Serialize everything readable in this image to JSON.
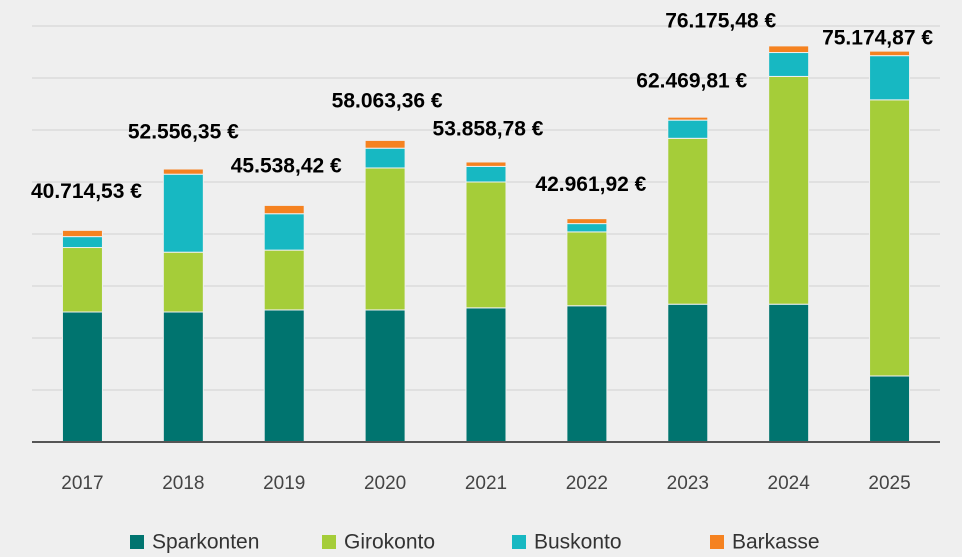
{
  "chart_data": {
    "type": "stacked_bar",
    "categories": [
      "2017",
      "2018",
      "2019",
      "2020",
      "2021",
      "2022",
      "2023",
      "2024",
      "2025"
    ],
    "series": [
      {
        "name": "Sparkonten",
        "color": "#00746f",
        "values": [
          25000,
          25000,
          25400,
          25400,
          25800,
          26200,
          26500,
          26500,
          12700
        ]
      },
      {
        "name": "Girokonto",
        "color": "#a5cd39",
        "values": [
          12400,
          11500,
          11500,
          27300,
          24200,
          14200,
          31900,
          43800,
          53100
        ]
      },
      {
        "name": "Buskonto",
        "color": "#17b8c2",
        "values": [
          2100,
          15000,
          7000,
          3800,
          3000,
          1600,
          3500,
          4600,
          8500
        ]
      },
      {
        "name": "Barkasse",
        "color": "#f58220",
        "values": [
          1200,
          1000,
          1600,
          1500,
          850,
          950,
          570,
          1275,
          870
        ]
      }
    ],
    "totals": [
      40714.53,
      52556.35,
      45538.42,
      58063.36,
      53858.78,
      42961.92,
      62469.81,
      76175.48,
      75174.87
    ],
    "totals_labels": [
      "40.714,53 €",
      "52.556,35 €",
      "45.538,42 €",
      "58.063,36 €",
      "53.858,78 €",
      "42.961,92 €",
      "62.469,81 €",
      "76.175,48 €",
      "75.174,87 €"
    ],
    "ylim": [
      0,
      80000
    ],
    "yticks": [
      0,
      10000,
      20000,
      30000,
      40000,
      50000,
      60000,
      70000,
      80000
    ],
    "grid": true,
    "legend": "bottom"
  }
}
